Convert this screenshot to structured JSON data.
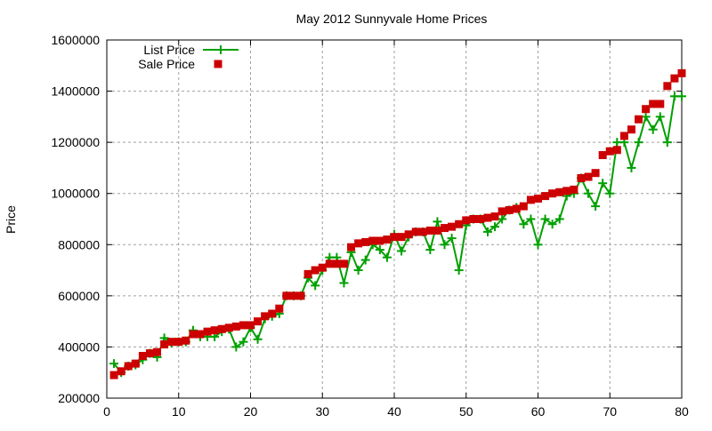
{
  "chart_data": {
    "type": "line",
    "title": "May 2012 Sunnyvale Home Prices",
    "xlabel": "",
    "ylabel": "Price",
    "xlim": [
      0,
      80
    ],
    "ylim": [
      200000,
      1600000
    ],
    "xticks": [
      0,
      10,
      20,
      30,
      40,
      50,
      60,
      70,
      80
    ],
    "yticks": [
      200000,
      400000,
      600000,
      800000,
      1000000,
      1200000,
      1400000,
      1600000
    ],
    "grid": true,
    "legend_position": "top-left",
    "x": [
      1,
      2,
      3,
      4,
      5,
      6,
      7,
      8,
      9,
      10,
      11,
      12,
      13,
      14,
      15,
      16,
      17,
      18,
      19,
      20,
      21,
      22,
      23,
      24,
      25,
      26,
      27,
      28,
      29,
      30,
      31,
      32,
      33,
      34,
      35,
      36,
      37,
      38,
      39,
      40,
      41,
      42,
      43,
      44,
      45,
      46,
      47,
      48,
      49,
      50,
      51,
      52,
      53,
      54,
      55,
      56,
      57,
      58,
      59,
      60,
      61,
      62,
      63,
      64,
      65,
      66,
      67,
      68,
      69,
      70,
      71,
      72,
      73,
      74,
      75,
      76,
      77,
      78,
      79,
      80
    ],
    "series": [
      {
        "name": "List Price",
        "style": "linespoints",
        "marker": "plus",
        "color": "#00a000",
        "values": [
          335000,
          300000,
          325000,
          330000,
          350000,
          375000,
          360000,
          435000,
          415000,
          420000,
          420000,
          465000,
          440000,
          440000,
          440000,
          460000,
          470000,
          400000,
          420000,
          475000,
          430000,
          510000,
          520000,
          530000,
          600000,
          600000,
          600000,
          670000,
          640000,
          700000,
          750000,
          750000,
          650000,
          770000,
          700000,
          740000,
          800000,
          780000,
          750000,
          840000,
          775000,
          830000,
          850000,
          850000,
          780000,
          890000,
          800000,
          825000,
          700000,
          875000,
          900000,
          900000,
          850000,
          870000,
          900000,
          935000,
          945000,
          880000,
          900000,
          800000,
          900000,
          880000,
          900000,
          990000,
          1000000,
          1060000,
          1000000,
          950000,
          1040000,
          1000000,
          1200000,
          1200000,
          1100000,
          1200000,
          1300000,
          1250000,
          1300000,
          1200000,
          1380000,
          1380000
        ]
      },
      {
        "name": "Sale Price",
        "style": "points",
        "marker": "square",
        "color": "#cc0000",
        "values": [
          290000,
          305000,
          325000,
          335000,
          365000,
          375000,
          380000,
          410000,
          420000,
          420000,
          425000,
          450000,
          450000,
          460000,
          465000,
          470000,
          475000,
          480000,
          485000,
          485000,
          500000,
          520000,
          530000,
          550000,
          600000,
          600000,
          600000,
          685000,
          700000,
          710000,
          725000,
          725000,
          725000,
          790000,
          805000,
          810000,
          815000,
          815000,
          820000,
          830000,
          830000,
          840000,
          850000,
          850000,
          855000,
          855000,
          865000,
          870000,
          880000,
          895000,
          900000,
          900000,
          905000,
          910000,
          930000,
          935000,
          940000,
          950000,
          975000,
          980000,
          990000,
          1000000,
          1005000,
          1010000,
          1015000,
          1060000,
          1065000,
          1080000,
          1150000,
          1165000,
          1170000,
          1225000,
          1250000,
          1290000,
          1330000,
          1350000,
          1350000,
          1420000,
          1450000,
          1470000
        ]
      }
    ]
  }
}
